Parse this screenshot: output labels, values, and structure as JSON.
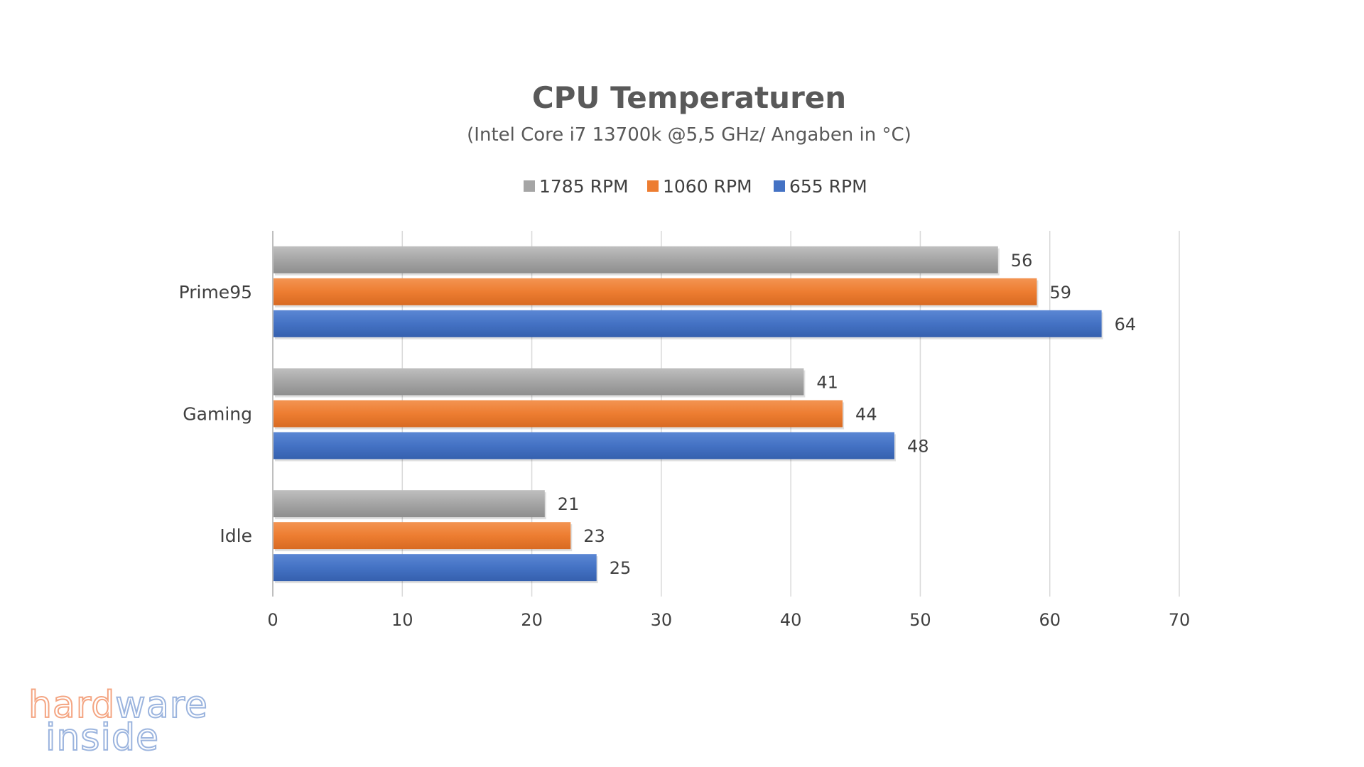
{
  "chart_data": {
    "type": "bar",
    "orientation": "horizontal",
    "title": "CPU Temperaturen",
    "subtitle": "(Intel Core i7 13700k @5,5 GHz/ Angaben in °C)",
    "categories": [
      "Prime95",
      "Gaming",
      "Idle"
    ],
    "series": [
      {
        "name": "1785 RPM",
        "color": "#a5a5a5",
        "values": [
          56,
          41,
          21
        ]
      },
      {
        "name": "1060 RPM",
        "color": "#ed7d31",
        "values": [
          59,
          44,
          23
        ]
      },
      {
        "name": "655 RPM",
        "color": "#4472c4",
        "values": [
          64,
          48,
          25
        ]
      }
    ],
    "xlim": [
      0,
      70
    ],
    "xticks": [
      0,
      10,
      20,
      30,
      40,
      50,
      60,
      70
    ],
    "grid": true,
    "legend": "top-center",
    "xlabel": "",
    "ylabel": ""
  },
  "logo": {
    "line1_part1": "hard",
    "line1_part2": "ware",
    "line2": "inside"
  }
}
